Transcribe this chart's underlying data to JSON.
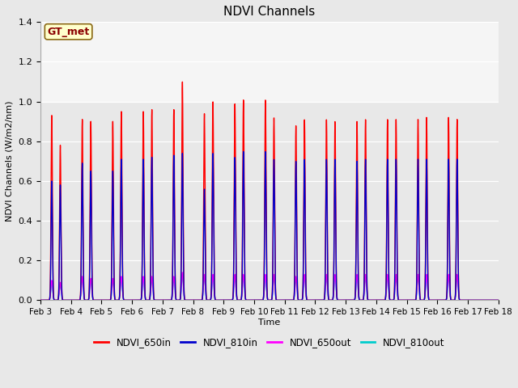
{
  "title": "NDVI Channels",
  "ylabel": "NDVI Channels (W/m2/nm)",
  "xlabel": "Time",
  "legend_labels": [
    "NDVI_650in",
    "NDVI_810in",
    "NDVI_650out",
    "NDVI_810out"
  ],
  "legend_colors": [
    "#ff0000",
    "#0000cc",
    "#ff00ff",
    "#00cccc"
  ],
  "annotation_text": "GT_met",
  "annotation_color": "#8b0000",
  "annotation_bg": "#ffffcc",
  "annotation_border": "#8b6914",
  "ylim": [
    0,
    1.4
  ],
  "xlim": [
    0,
    15
  ],
  "tick_dates": [
    "Feb 3",
    "Feb 4",
    "Feb 5",
    "Feb 6",
    "Feb 7",
    "Feb 8",
    "Feb 9",
    "Feb 10",
    "Feb 11",
    "Feb 12",
    "Feb 13",
    "Feb 14",
    "Feb 15",
    "Feb 16",
    "Feb 17",
    "Feb 18"
  ],
  "n_days": 15,
  "peaks_650in": [
    0.93,
    0.78,
    0.91,
    0.9,
    0.9,
    0.95,
    0.95,
    0.96,
    0.96,
    1.1,
    0.94,
    1.0,
    0.99,
    1.01,
    1.01,
    0.92,
    0.88,
    0.91,
    0.91,
    0.9,
    0.9,
    0.91,
    0.91,
    0.91,
    0.91,
    0.92,
    0.92,
    0.91
  ],
  "peaks_810in": [
    0.6,
    0.58,
    0.69,
    0.65,
    0.65,
    0.71,
    0.71,
    0.72,
    0.73,
    0.74,
    0.56,
    0.74,
    0.72,
    0.75,
    0.75,
    0.71,
    0.7,
    0.71,
    0.71,
    0.71,
    0.7,
    0.71,
    0.71,
    0.71,
    0.71,
    0.71,
    0.71,
    0.71
  ],
  "peaks_650out": [
    0.1,
    0.09,
    0.12,
    0.11,
    0.11,
    0.12,
    0.12,
    0.12,
    0.12,
    0.14,
    0.13,
    0.13,
    0.13,
    0.13,
    0.13,
    0.13,
    0.12,
    0.13,
    0.13,
    0.13,
    0.13,
    0.13,
    0.13,
    0.13,
    0.13,
    0.13,
    0.13,
    0.13
  ],
  "peaks_810out": [
    0.09,
    0.08,
    0.11,
    0.1,
    0.1,
    0.11,
    0.11,
    0.11,
    0.11,
    0.13,
    0.12,
    0.12,
    0.12,
    0.12,
    0.12,
    0.12,
    0.11,
    0.12,
    0.12,
    0.12,
    0.12,
    0.12,
    0.12,
    0.12,
    0.12,
    0.12,
    0.12,
    0.12
  ],
  "figsize": [
    6.4,
    4.8
  ],
  "dpi": 100
}
